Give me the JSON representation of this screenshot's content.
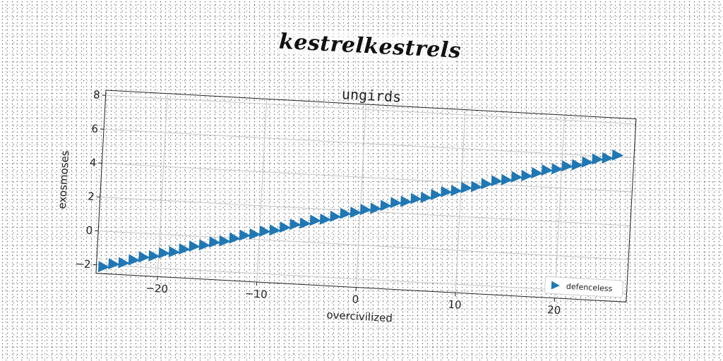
{
  "suptitle": "kestrelkestrels",
  "chart_data": {
    "type": "scatter",
    "title": "ungirds",
    "xlabel": "overcivilized",
    "ylabel": "exosmoses",
    "xlim": [
      -26.2,
      27.2
    ],
    "ylim": [
      -2.5,
      8.3
    ],
    "xticks": [
      -20,
      -10,
      0,
      10,
      20
    ],
    "xtick_labels": [
      "−20",
      "−10",
      "0",
      "10",
      "20"
    ],
    "yticks": [
      -2,
      0,
      2,
      4,
      6,
      8
    ],
    "ytick_labels": [
      "−2",
      "0",
      "2",
      "4",
      "6",
      "8"
    ],
    "grid": true,
    "legend_position": "lower right",
    "series": [
      {
        "name": "defenceless",
        "marker": "triangle-right",
        "color": "#1f77b4",
        "x": [
          -25.5,
          -24.5,
          -23.5,
          -22.5,
          -21.5,
          -20.5,
          -19.5,
          -18.5,
          -17.5,
          -16.5,
          -15.5,
          -14.5,
          -13.5,
          -12.5,
          -11.5,
          -10.5,
          -9.5,
          -8.5,
          -7.5,
          -6.5,
          -5.5,
          -4.5,
          -3.5,
          -2.5,
          -1.5,
          -0.5,
          0.5,
          1.5,
          2.5,
          3.5,
          4.5,
          5.5,
          6.5,
          7.5,
          8.5,
          9.5,
          10.5,
          11.5,
          12.5,
          13.5,
          14.5,
          15.5,
          16.5,
          17.5,
          18.5,
          19.5,
          20.5,
          21.5,
          22.5,
          23.5,
          24.5,
          25.5
        ],
        "y": [
          -2.1,
          -1.9,
          -1.8,
          -1.6,
          -1.4,
          -1.3,
          -1.1,
          -1.0,
          -0.8,
          -0.6,
          -0.5,
          -0.3,
          -0.2,
          0.0,
          0.2,
          0.3,
          0.5,
          0.6,
          0.8,
          1.0,
          1.1,
          1.3,
          1.4,
          1.6,
          1.8,
          1.9,
          2.1,
          2.2,
          2.4,
          2.6,
          2.7,
          2.9,
          3.0,
          3.2,
          3.4,
          3.5,
          3.7,
          3.8,
          4.0,
          4.2,
          4.3,
          4.5,
          4.6,
          4.8,
          5.0,
          5.1,
          5.3,
          5.4,
          5.6,
          5.8,
          5.9,
          6.1
        ]
      }
    ]
  }
}
